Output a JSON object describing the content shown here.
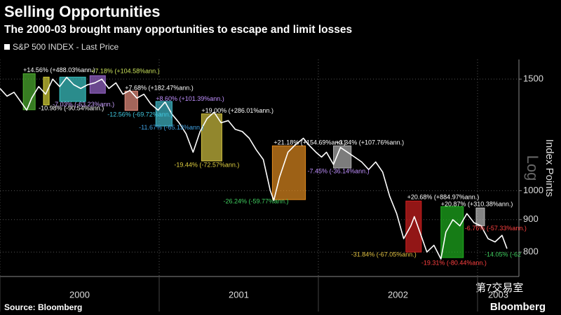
{
  "chart_data": {
    "type": "line",
    "title": "Selling Opportunities",
    "subtitle": "The 2000-03 brought many opportunities to escape and limit losses",
    "y_axis_title": "Index Points",
    "scale_label": "Log",
    "log_scale": true,
    "grid": true,
    "legend_position": "top-left",
    "source": "Source: Bloomberg",
    "brand": "Bloomberg",
    "watermark": "第7交易室",
    "xlim": [
      2000,
      2003.26
    ],
    "xticks": [
      2000,
      2001,
      2002,
      2003
    ],
    "ylim": [
      732,
      1611
    ],
    "yticks": [
      800,
      900,
      1000,
      1500
    ],
    "series": [
      {
        "name": "S&P 500 INDEX - Last Price",
        "color": "#ffffff",
        "x": [
          2000,
          2000.044,
          2000.088,
          2000.132,
          2000.168,
          2000.199,
          2000.243,
          2000.287,
          2000.331,
          2000.375,
          2000.419,
          2000.463,
          2000.507,
          2000.551,
          2000.596,
          2000.64,
          2000.684,
          2000.728,
          2000.772,
          2000.816,
          2000.86,
          2000.904,
          2000.948,
          2000.993,
          2001.037,
          2001.081,
          2001.125,
          2001.169,
          2001.213,
          2001.257,
          2001.301,
          2001.345,
          2001.389,
          2001.434,
          2001.478,
          2001.522,
          2001.566,
          2001.61,
          2001.654,
          2001.698,
          2001.72,
          2001.756,
          2001.809,
          2001.853,
          2001.906,
          2001.941,
          2001.985,
          2002.02,
          2002.051,
          2002.095,
          2002.139,
          2002.183,
          2002.228,
          2002.272,
          2002.316,
          2002.36,
          2002.404,
          2002.448,
          2002.492,
          2002.536,
          2002.581,
          2002.603,
          2002.638,
          2002.682,
          2002.726,
          2002.77,
          2002.801,
          2002.845,
          2002.889,
          2002.933,
          2002.978,
          2003.022,
          2003.066,
          2003.11,
          2003.154,
          2003.185
        ],
        "values": [
          1450,
          1410,
          1430,
          1380,
          1340,
          1400,
          1460,
          1420,
          1500,
          1460,
          1510,
          1470,
          1450,
          1470,
          1480,
          1500,
          1450,
          1480,
          1420,
          1440,
          1400,
          1420,
          1370,
          1340,
          1380,
          1320,
          1280,
          1230,
          1150,
          1240,
          1300,
          1330,
          1280,
          1290,
          1250,
          1240,
          1210,
          1160,
          1120,
          1000,
          965,
          1050,
          1150,
          1180,
          1210,
          1180,
          1150,
          1130,
          1150,
          1100,
          1170,
          1150,
          1130,
          1110,
          1080,
          1110,
          1070,
          980,
          920,
          840,
          880,
          910,
          860,
          800,
          820,
          780,
          860,
          900,
          880,
          920,
          890,
          880,
          840,
          830,
          850,
          810
        ]
      }
    ],
    "boxes": [
      {
        "x0": 2000.146,
        "x1": 2000.221,
        "lo": 1342,
        "hi": 1530,
        "color": "#4fb030"
      },
      {
        "x0": 2000.273,
        "x1": 2000.309,
        "lo": 1366,
        "hi": 1511,
        "color": "#d6d23a"
      },
      {
        "x0": 2000.375,
        "x1": 2000.538,
        "lo": 1383,
        "hi": 1511,
        "color": "#3cc8c8"
      },
      {
        "x0": 2000.565,
        "x1": 2000.662,
        "lo": 1425,
        "hi": 1519,
        "color": "#9966cc"
      },
      {
        "x0": 2000.785,
        "x1": 2000.865,
        "lo": 1339,
        "hi": 1436,
        "color": "#e89080"
      },
      {
        "x0": 2000.979,
        "x1": 2001.081,
        "lo": 1265,
        "hi": 1383,
        "color": "#40b8c8"
      },
      {
        "x0": 2001.266,
        "x1": 2001.394,
        "lo": 1114,
        "hi": 1322,
        "color": "#d0c040"
      },
      {
        "x0": 2001.711,
        "x1": 2001.919,
        "lo": 968,
        "hi": 1177,
        "color": "#e08a20"
      },
      {
        "x0": 2002.095,
        "x1": 2002.206,
        "lo": 1086,
        "hi": 1177,
        "color": "#b0b0b0"
      },
      {
        "x0": 2002.55,
        "x1": 2002.647,
        "lo": 800,
        "hi": 963,
        "color": "#d02020"
      },
      {
        "x0": 2002.77,
        "x1": 2002.911,
        "lo": 784,
        "hi": 944,
        "color": "#20b020"
      },
      {
        "x0": 2002.991,
        "x1": 2003.044,
        "lo": 880,
        "hi": 939,
        "color": "#bbbbbb"
      }
    ],
    "annotations": [
      {
        "text": "+14.56% (+488.03%ann.)",
        "x": 2000.146,
        "y": 1549,
        "color": "#ffffff"
      },
      {
        "text": "-10.98% (-90.54%ann.)",
        "x": 2000.243,
        "y": 1348,
        "color": "#ffffff"
      },
      {
        "text": "-7.03% (-63.23%ann.)",
        "x": 2000.331,
        "y": 1366,
        "color": "#c9a0ff"
      },
      {
        "text": "+7.18% (+104.58%ann.)",
        "x": 2000.573,
        "y": 1542,
        "color": "#c8e05a"
      },
      {
        "text": "+7.68% (+182.47%ann.)",
        "x": 2000.785,
        "y": 1451,
        "color": "#ffffff"
      },
      {
        "text": "-12.56% (-69.72%ann.)",
        "x": 2000.675,
        "y": 1318,
        "color": "#40c8e0"
      },
      {
        "text": "+8.60% (+101.39%ann.)",
        "x": 2000.979,
        "y": 1394,
        "color": "#c090ff"
      },
      {
        "text": "-11.67% (-65.13%ann.)",
        "x": 2000.873,
        "y": 1256,
        "color": "#40a0e0"
      },
      {
        "text": "+19.00% (+286.01%ann.)",
        "x": 2001.266,
        "y": 1335,
        "color": "#ffffff"
      },
      {
        "text": "-19.44% (-72.57%ann.)",
        "x": 2001.094,
        "y": 1097,
        "color": "#e0d040"
      },
      {
        "text": "+21.18% (+154.69%ann.)",
        "x": 2001.72,
        "y": 1189,
        "color": "#ffffff"
      },
      {
        "text": "-26.24% (-59.77%ann.)",
        "x": 2001.403,
        "y": 961,
        "color": "#40d060"
      },
      {
        "text": "+3.34% (+107.76%ann.)",
        "x": 2002.108,
        "y": 1189,
        "color": "#ffffff"
      },
      {
        "text": "-7.45% (-36.14%ann.)",
        "x": 2001.932,
        "y": 1072,
        "color": "#c090ff"
      },
      {
        "text": "+20.68% (+884.97%ann.)",
        "x": 2002.558,
        "y": 976,
        "color": "#ffffff"
      },
      {
        "text": "-31.84% (-67.05%ann.)",
        "x": 2002.206,
        "y": 792,
        "color": "#e0c040"
      },
      {
        "text": "-19.31% (-80.44%ann.)",
        "x": 2002.647,
        "y": 768,
        "color": "#ff4040"
      },
      {
        "text": "+20.87% (+310.38%ann.)",
        "x": 2002.77,
        "y": 951,
        "color": "#ffffff"
      },
      {
        "text": "-6.76% (-57.33%ann.)",
        "x": 2002.92,
        "y": 871,
        "color": "#ff4040"
      },
      {
        "text": "-14.05% (-62",
        "x": 2003.044,
        "y": 792,
        "color": "#40d060"
      }
    ]
  }
}
